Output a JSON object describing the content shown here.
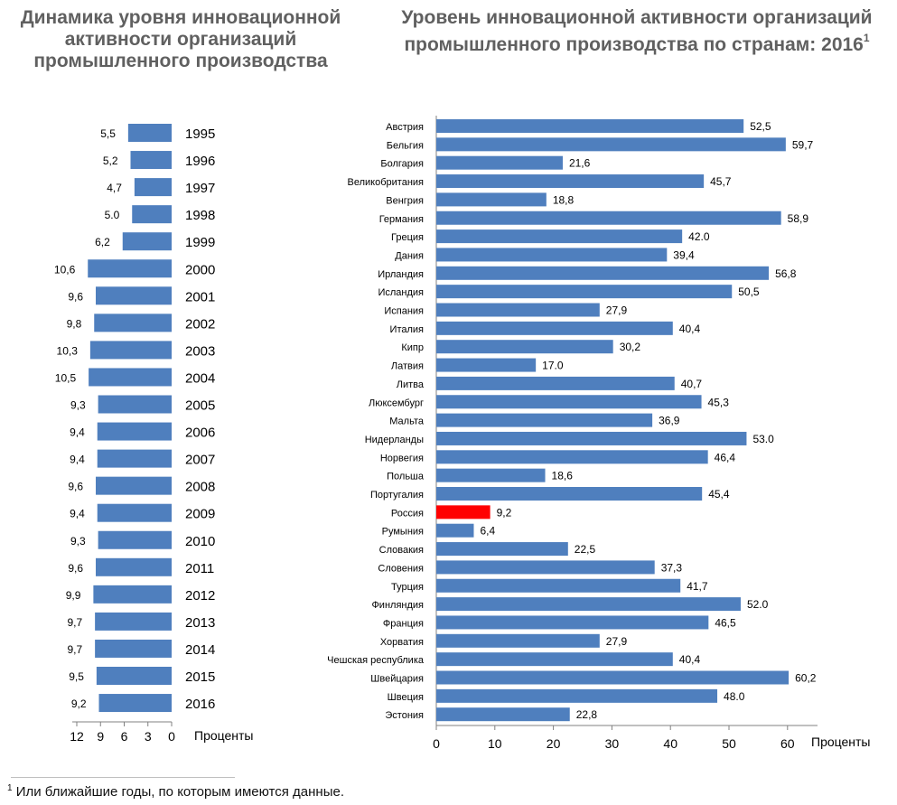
{
  "titles": {
    "left": "Динамика уровня инновационной активности организаций промышленного производства",
    "right": "Уровень инновационной активности организаций промышленного производства по странам: 2016",
    "right_sup": "1"
  },
  "footnote": {
    "mark": "1",
    "text": " Или ближайшие годы, по которым имеются данные."
  },
  "colors": {
    "bar": "#4f7fbe",
    "highlight": "#ff0000"
  },
  "chart_data": [
    {
      "type": "bar",
      "orientation": "horizontal",
      "title": "Динамика уровня инновационной активности организаций промышленного производства",
      "xlabel": "Проценты",
      "xlim": [
        0,
        12
      ],
      "xticks": [
        "12",
        "9",
        "6",
        "3",
        "0"
      ],
      "categories": [
        "1995",
        "1996",
        "1997",
        "1998",
        "1999",
        "2000",
        "2001",
        "2002",
        "2003",
        "2004",
        "2005",
        "2006",
        "2007",
        "2008",
        "2009",
        "2010",
        "2011",
        "2012",
        "2013",
        "2014",
        "2015",
        "2016"
      ],
      "values": [
        5.5,
        5.2,
        4.7,
        5.0,
        6.2,
        10.6,
        9.6,
        9.8,
        10.3,
        10.5,
        9.3,
        9.4,
        9.4,
        9.6,
        9.4,
        9.3,
        9.6,
        9.9,
        9.7,
        9.7,
        9.5,
        9.2
      ],
      "value_labels": [
        "5,5",
        "5,2",
        "4,7",
        "5.0",
        "6,2",
        "10,6",
        "9,6",
        "9,8",
        "10,3",
        "10,5",
        "9,3",
        "9,4",
        "9,4",
        "9,6",
        "9,4",
        "9,3",
        "9,6",
        "9,9",
        "9,7",
        "9,7",
        "9,5",
        "9,2"
      ]
    },
    {
      "type": "bar",
      "orientation": "horizontal",
      "title": "Уровень инновационной активности организаций промышленного производства по странам: 2016",
      "xlabel": "Проценты",
      "xlim": [
        0,
        65
      ],
      "xticks": [
        "0",
        "10",
        "20",
        "30",
        "40",
        "50",
        "60"
      ],
      "highlight": "Россия",
      "categories": [
        "Австрия",
        "Бельгия",
        "Болгария",
        "Великобритания",
        "Венгрия",
        "Германия",
        "Греция",
        "Дания",
        "Ирландия",
        "Исландия",
        "Испания",
        "Италия",
        "Кипр",
        "Латвия",
        "Литва",
        "Люксембург",
        "Мальта",
        "Нидерланды",
        "Норвегия",
        "Польша",
        "Португалия",
        "Россия",
        "Румыния",
        "Словакия",
        "Словения",
        "Турция",
        "Финляндия",
        "Франция",
        "Хорватия",
        "Чешская республика",
        "Швейцария",
        "Швеция",
        "Эстония"
      ],
      "values": [
        52.5,
        59.7,
        21.6,
        45.7,
        18.8,
        58.9,
        42.0,
        39.4,
        56.8,
        50.5,
        27.9,
        40.4,
        30.2,
        17.0,
        40.7,
        45.3,
        36.9,
        53.0,
        46.4,
        18.6,
        45.4,
        9.2,
        6.4,
        22.5,
        37.3,
        41.7,
        52.0,
        46.5,
        27.9,
        40.4,
        60.2,
        48.0,
        22.8
      ],
      "value_labels": [
        "52,5",
        "59,7",
        "21,6",
        "45,7",
        "18,8",
        "58,9",
        "42.0",
        "39,4",
        "56,8",
        "50,5",
        "27,9",
        "40,4",
        "30,2",
        "17.0",
        "40,7",
        "45,3",
        "36,9",
        "53.0",
        "46,4",
        "18,6",
        "45,4",
        "9,2",
        "6,4",
        "22,5",
        "37,3",
        "41,7",
        "52.0",
        "46,5",
        "27,9",
        "40,4",
        "60,2",
        "48.0",
        "22,8"
      ]
    }
  ]
}
